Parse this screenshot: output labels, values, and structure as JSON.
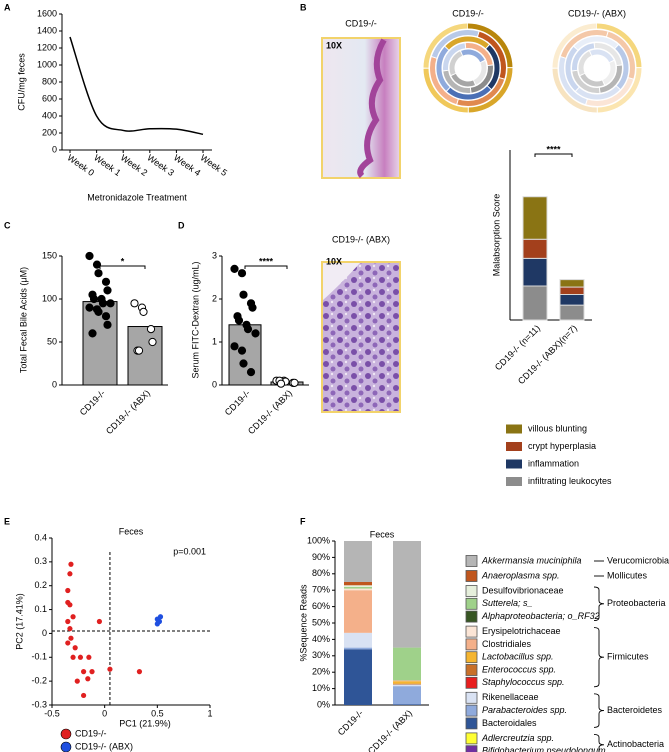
{
  "panel_labels": [
    "A",
    "B",
    "C",
    "D",
    "E",
    "F"
  ],
  "histology": [
    {
      "title": "CD19-/-",
      "magnification": "10X"
    },
    {
      "title": "CD19-/- (ABX)",
      "magnification": "10X"
    }
  ],
  "ring_charts": [
    {
      "title": "CD19-/-"
    },
    {
      "title": "CD19-/- (ABX)"
    }
  ],
  "chart_data": [
    {
      "type": "line",
      "xlabel": "Metronidazole Treatment",
      "ylabel": "CFU/mg feces",
      "categories": [
        "Week 0",
        "Week 1",
        "Week 2",
        "Week 3",
        "Week 4",
        "Week 5"
      ],
      "values": [
        1330,
        400,
        230,
        250,
        245,
        185
      ],
      "color": "#000000",
      "ylim": [
        0,
        1600
      ],
      "yticks": [
        0,
        200,
        400,
        600,
        800,
        1000,
        1200,
        1400,
        1600
      ]
    },
    {
      "type": "stacked_bar",
      "ylabel": "Malabsorption Score",
      "categories": [
        "CD19-/- (n=11)",
        "CD19-/- (ABX)(n=7)"
      ],
      "series": [
        {
          "name": "villous blunting",
          "color": "#8a7414",
          "values": [
            2.0,
            0.35
          ]
        },
        {
          "name": "crypt hyperplasia",
          "color": "#a3401c",
          "values": [
            0.9,
            0.35
          ]
        },
        {
          "name": "inflammation",
          "color": "#1f3864",
          "values": [
            1.3,
            0.5
          ]
        },
        {
          "name": "infiltrating leukocytes",
          "color": "#8c8c8c",
          "values": [
            1.6,
            0.7
          ]
        }
      ],
      "ylim": [
        0,
        8
      ],
      "significance": "****"
    },
    {
      "type": "bar_dot",
      "ylabel": "Total Fecal Bile Acids (μM)",
      "categories": [
        "CD19-/-",
        "CD19-/- (ABX)"
      ],
      "values": [
        97,
        68
      ],
      "color": "#a6a6a6",
      "points": [
        [
          150,
          140,
          130,
          120,
          110,
          105,
          100,
          100,
          95,
          95,
          90,
          88,
          85,
          80,
          70,
          60
        ],
        [
          95,
          90,
          85,
          65,
          50,
          40,
          40
        ]
      ],
      "point_colors": [
        "#000000",
        "#ffffff"
      ],
      "ylim": [
        0,
        150
      ],
      "yticks": [
        0,
        50,
        100,
        150
      ],
      "significance": "*"
    },
    {
      "type": "bar_dot",
      "ylabel": "Serum FITC-Dextran (ug/mL)",
      "categories": [
        "CD19-/-",
        "CD19-/- (ABX)"
      ],
      "values": [
        1.4,
        0.07
      ],
      "color": "#a6a6a6",
      "points": [
        [
          2.7,
          2.6,
          2.1,
          1.9,
          1.8,
          1.6,
          1.5,
          1.4,
          1.3,
          1.2,
          0.9,
          0.8,
          0.5,
          0.3
        ],
        [
          0.1,
          0.1,
          0.08,
          0.05,
          0.05,
          0.1,
          0.03
        ]
      ],
      "point_colors": [
        "#000000",
        "#ffffff"
      ],
      "ylim": [
        0,
        3
      ],
      "yticks": [
        0,
        1,
        2,
        3
      ],
      "significance": "****"
    },
    {
      "type": "scatter",
      "title": "Feces",
      "annotation": "p=0.001",
      "xlabel": "PC1 (21.9%)",
      "ylabel": "PC2 (17.41%)",
      "series": [
        {
          "name": "CD19-/-",
          "color": "#e02020",
          "x": [
            -0.32,
            -0.33,
            -0.35,
            -0.35,
            -0.33,
            -0.3,
            -0.35,
            -0.05,
            -0.33,
            -0.32,
            -0.35,
            -0.28,
            -0.3,
            -0.23,
            -0.15,
            -0.2,
            -0.12,
            -0.26,
            -0.16,
            -0.2,
            0.05,
            0.33
          ],
          "y": [
            0.29,
            0.25,
            0.18,
            0.13,
            0.12,
            0.07,
            0.05,
            0.05,
            0.02,
            -0.02,
            -0.04,
            -0.06,
            -0.1,
            -0.1,
            -0.1,
            -0.16,
            -0.16,
            -0.2,
            -0.19,
            -0.26,
            -0.15,
            -0.16
          ]
        },
        {
          "name": "CD19-/- (ABX)",
          "color": "#1f4fe0",
          "x": [
            0.5,
            0.52,
            0.5,
            0.53,
            0.51
          ],
          "y": [
            0.06,
            0.05,
            0.04,
            0.07,
            0.05
          ]
        }
      ],
      "xlim": [
        -0.5,
        1
      ],
      "xticks": [
        -0.5,
        0,
        0.5,
        1
      ],
      "ylim": [
        -0.3,
        0.4
      ],
      "yticks": [
        -0.3,
        -0.2,
        -0.1,
        0,
        0.1,
        0.2,
        0.3,
        0.4
      ],
      "ref_lines": {
        "x": 0.05,
        "y": 0.01
      }
    },
    {
      "type": "stacked_bar",
      "title": "Feces",
      "ylabel": "%Sequence Reads",
      "categories": [
        "CD19-/-",
        "CD19-/- (ABX)"
      ],
      "groups": [
        {
          "name": "Verucomicrobia",
          "series": [
            {
              "name": "Akkermansia muciniphila",
              "italic": true,
              "color": "#b5b5b5",
              "values": [
                25,
                65
              ]
            }
          ]
        },
        {
          "name": "Mollicutes",
          "series": [
            {
              "name": "Anaeroplasma spp.",
              "italic": true,
              "color": "#c0561e",
              "values": [
                2,
                0
              ]
            }
          ]
        },
        {
          "name": "Proteobacteria",
          "series": [
            {
              "name": "Desulfovibrionaceae",
              "italic": false,
              "color": "#e6efdc",
              "values": [
                1,
                0
              ]
            },
            {
              "name": "Sutterela; s_",
              "italic": true,
              "color": "#9fd18a",
              "values": [
                1,
                20
              ]
            },
            {
              "name": "Alphaproteobacteria; o_RF32",
              "italic": true,
              "color": "#375623",
              "values": [
                0,
                0
              ]
            }
          ]
        },
        {
          "name": "Firmicutes",
          "series": [
            {
              "name": "Erysipelotrichaceae",
              "italic": false,
              "color": "#fbe5d6",
              "values": [
                1,
                0
              ]
            },
            {
              "name": "Clostridiales",
              "italic": false,
              "color": "#f4b08a",
              "values": [
                26,
                0.5
              ]
            },
            {
              "name": "Lactobacillus spp.",
              "italic": true,
              "color": "#f5b530",
              "values": [
                0,
                1.5
              ]
            },
            {
              "name": "Enterococcus spp.",
              "italic": true,
              "color": "#c8702a",
              "values": [
                0,
                0.5
              ]
            },
            {
              "name": "Staphylococcus spp.",
              "italic": true,
              "color": "#e81e1e",
              "values": [
                0,
                0
              ]
            }
          ]
        },
        {
          "name": "Bacteroidetes",
          "series": [
            {
              "name": "Rikenellaceae",
              "italic": false,
              "color": "#d9e2f3",
              "values": [
                9,
                1
              ]
            },
            {
              "name": "Parabacteroides spp.",
              "italic": true,
              "color": "#8faadc",
              "values": [
                1,
                11
              ]
            },
            {
              "name": "Bacteroidales",
              "italic": false,
              "color": "#2f5597",
              "values": [
                34,
                0.5
              ]
            }
          ]
        },
        {
          "name": "Actinobacteria",
          "series": [
            {
              "name": "Adlercreutzia spp.",
              "italic": true,
              "color": "#ffff33",
              "values": [
                0,
                0
              ]
            },
            {
              "name": "Bifidobacterium pseudolongum",
              "italic": true,
              "color": "#7030a0",
              "values": [
                0,
                0
              ]
            }
          ]
        }
      ],
      "ylim": [
        0,
        100
      ],
      "yticks": [
        {
          "value": 0,
          "label": "0%"
        },
        {
          "value": 10,
          "label": "10%"
        },
        {
          "value": 20,
          "label": "20%"
        },
        {
          "value": 30,
          "label": "30%"
        },
        {
          "value": 40,
          "label": "40%"
        },
        {
          "value": 50,
          "label": "50%"
        },
        {
          "value": 60,
          "label": "60%"
        },
        {
          "value": 70,
          "label": "70%"
        },
        {
          "value": 80,
          "label": "80%"
        },
        {
          "value": 90,
          "label": "90%"
        },
        {
          "value": 100,
          "label": "100%"
        }
      ]
    }
  ]
}
